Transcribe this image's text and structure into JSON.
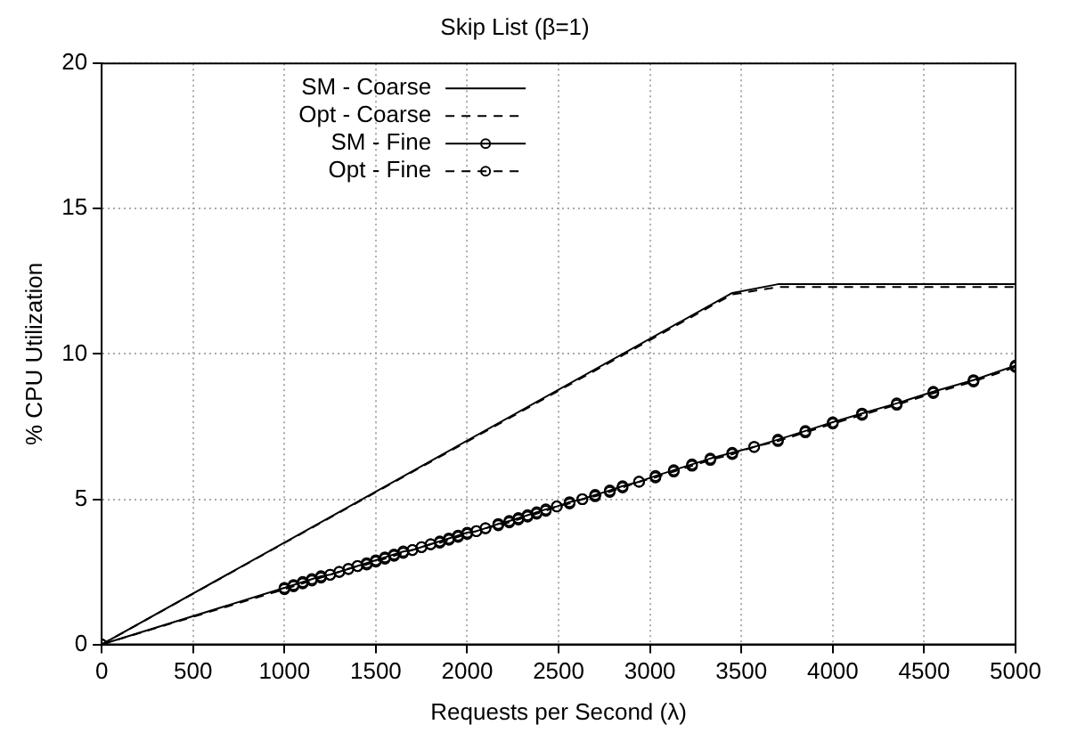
{
  "chart_data": {
    "type": "line",
    "title": "Skip List (β=1)",
    "xlabel": "Requests per Second (λ)",
    "ylabel": "% CPU Utilization",
    "xlim": [
      0,
      5000
    ],
    "xticks": [
      0,
      500,
      1000,
      1500,
      2000,
      2500,
      3000,
      3500,
      4000,
      4500,
      5000
    ],
    "ylim": [
      0,
      20
    ],
    "yticks": [
      0,
      5,
      10,
      15,
      20
    ],
    "grid": true,
    "legend": "top left",
    "series": [
      {
        "name": "SM - Coarse",
        "color": "#000000",
        "line_style": "solid",
        "marker": "none",
        "x": [
          0,
          3450,
          3700,
          5000
        ],
        "values": [
          0,
          12.1,
          12.4,
          12.4
        ]
      },
      {
        "name": "Opt - Coarse",
        "color": "#000000",
        "line_style": "dashed",
        "marker": "none",
        "x": [
          0,
          3450,
          3700,
          5000
        ],
        "values": [
          0,
          12.05,
          12.3,
          12.3
        ]
      },
      {
        "name": "SM - Fine",
        "color": "#000000",
        "line_style": "solid",
        "marker": "circle",
        "x": [
          0,
          1000,
          1050,
          1100,
          1150,
          1200,
          1250,
          1300,
          1350,
          1400,
          1450,
          1500,
          1550,
          1600,
          1650,
          1700,
          1750,
          1800,
          1850,
          1900,
          1950,
          2000,
          2050,
          2100,
          2170,
          2230,
          2280,
          2330,
          2380,
          2430,
          2490,
          2560,
          2630,
          2700,
          2780,
          2850,
          2940,
          3030,
          3130,
          3230,
          3330,
          3450,
          3570,
          3700,
          3850,
          4000,
          4160,
          4350,
          4550,
          4770,
          5000
        ],
        "values": [
          0,
          1.95,
          2.05,
          2.15,
          2.25,
          2.35,
          2.4,
          2.5,
          2.6,
          2.7,
          2.8,
          2.9,
          3.0,
          3.1,
          3.2,
          3.25,
          3.35,
          3.45,
          3.55,
          3.65,
          3.75,
          3.85,
          3.9,
          4.0,
          4.15,
          4.25,
          4.35,
          4.45,
          4.55,
          4.65,
          4.75,
          4.9,
          5.0,
          5.15,
          5.3,
          5.45,
          5.6,
          5.8,
          6.0,
          6.2,
          6.4,
          6.6,
          6.8,
          7.05,
          7.35,
          7.65,
          7.95,
          8.3,
          8.7,
          9.1,
          9.6
        ]
      },
      {
        "name": "Opt - Fine",
        "color": "#000000",
        "line_style": "dashed",
        "marker": "circle",
        "x": [
          0,
          1000,
          1050,
          1100,
          1150,
          1200,
          1250,
          1300,
          1350,
          1400,
          1450,
          1500,
          1550,
          1600,
          1650,
          1700,
          1750,
          1800,
          1850,
          1900,
          1950,
          2000,
          2050,
          2100,
          2170,
          2230,
          2280,
          2330,
          2380,
          2430,
          2490,
          2560,
          2630,
          2700,
          2780,
          2850,
          2940,
          3030,
          3130,
          3230,
          3330,
          3450,
          3570,
          3700,
          3850,
          4000,
          4160,
          4350,
          4550,
          4770,
          5000
        ],
        "values": [
          0,
          1.9,
          2.0,
          2.1,
          2.2,
          2.3,
          2.4,
          2.5,
          2.6,
          2.7,
          2.75,
          2.85,
          2.95,
          3.05,
          3.15,
          3.25,
          3.35,
          3.45,
          3.5,
          3.6,
          3.7,
          3.8,
          3.9,
          4.0,
          4.1,
          4.2,
          4.3,
          4.4,
          4.5,
          4.6,
          4.75,
          4.85,
          5.0,
          5.1,
          5.25,
          5.4,
          5.6,
          5.75,
          5.95,
          6.15,
          6.35,
          6.55,
          6.8,
          7.0,
          7.3,
          7.6,
          7.9,
          8.25,
          8.65,
          9.05,
          9.55
        ]
      }
    ]
  }
}
